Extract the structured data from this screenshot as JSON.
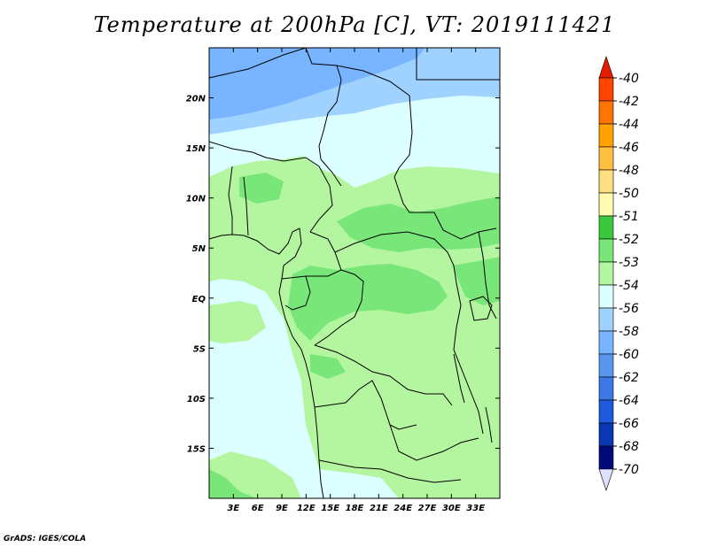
{
  "title": "Temperature at 200hPa [C], VT: 2019111421",
  "footer": "GrADS: IGES/COLA",
  "map": {
    "lon_range": [
      0,
      36
    ],
    "lat_range": [
      -20,
      25
    ],
    "x_ticks": [
      {
        "lon": 3,
        "label": "3E"
      },
      {
        "lon": 6,
        "label": "6E"
      },
      {
        "lon": 9,
        "label": "9E"
      },
      {
        "lon": 12,
        "label": "12E"
      },
      {
        "lon": 15,
        "label": "15E"
      },
      {
        "lon": 18,
        "label": "18E"
      },
      {
        "lon": 21,
        "label": "21E"
      },
      {
        "lon": 24,
        "label": "24E"
      },
      {
        "lon": 27,
        "label": "27E"
      },
      {
        "lon": 30,
        "label": "30E"
      },
      {
        "lon": 33,
        "label": "33E"
      }
    ],
    "y_ticks": [
      {
        "lat": 20,
        "label": "20N"
      },
      {
        "lat": 15,
        "label": "15N"
      },
      {
        "lat": 10,
        "label": "10N"
      },
      {
        "lat": 5,
        "label": "5N"
      },
      {
        "lat": 0,
        "label": "EQ"
      },
      {
        "lat": -5,
        "label": "5S"
      },
      {
        "lat": -10,
        "label": "10S"
      },
      {
        "lat": -15,
        "label": "15S"
      }
    ]
  },
  "colorbar": {
    "labels": [
      "-40",
      "-42",
      "-44",
      "-46",
      "-48",
      "-50",
      "-51",
      "-52",
      "-53",
      "-54",
      "-56",
      "-58",
      "-60",
      "-62",
      "-64",
      "-66",
      "-68",
      "-70"
    ],
    "colors": [
      "#ff1a00",
      "#ff4500",
      "#ff7500",
      "#ffa200",
      "#ffc040",
      "#ffe080",
      "#fffbb0",
      "#3cc83c",
      "#78e678",
      "#b4f5a0",
      "#dcffff",
      "#a0d2ff",
      "#78b4ff",
      "#5a96f0",
      "#3c78e6",
      "#1e5adc",
      "#0a37b4",
      "#000a78"
    ],
    "top_arrow_color": "#e61e00",
    "bottom_arrow_color": "#e0e0ff"
  },
  "palette": {
    "pale_cyan": "#dcffff",
    "light_green": "#b4f5a0",
    "green": "#78e678",
    "light_blue": "#a0d2ff",
    "blue": "#78b4ff"
  }
}
